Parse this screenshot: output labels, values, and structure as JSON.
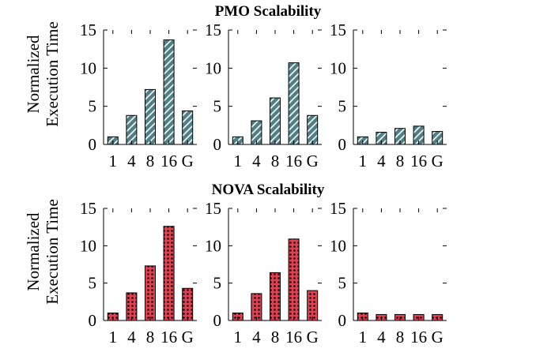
{
  "groups": [
    {
      "title": "PMO Scalability"
    },
    {
      "title": "NOVA Scalability"
    }
  ],
  "ylabel": [
    "Normalized",
    "Execution Time"
  ],
  "colors": {
    "pmo_bar": "#4f7f85",
    "pmo_hatch": "#ffffff",
    "nova_bar": "#e0404f",
    "nova_dots": "#000000",
    "axis": "#000000"
  },
  "chart_data": [
    {
      "type": "bar",
      "group": "PMO Scalability",
      "categories": [
        "1",
        "4",
        "8",
        "16",
        "G"
      ],
      "values": [
        1.0,
        3.8,
        7.2,
        13.7,
        4.4
      ],
      "ylim": [
        0,
        15
      ],
      "yticks": [
        0,
        5,
        10,
        15
      ],
      "xlabel": "",
      "ylabel": "Normalized Execution Time"
    },
    {
      "type": "bar",
      "group": "PMO Scalability",
      "categories": [
        "1",
        "4",
        "8",
        "16",
        "G"
      ],
      "values": [
        1.0,
        3.1,
        6.1,
        10.7,
        3.8
      ],
      "ylim": [
        0,
        15
      ],
      "yticks": [
        0,
        5,
        10,
        15
      ],
      "xlabel": "",
      "ylabel": ""
    },
    {
      "type": "bar",
      "group": "PMO Scalability",
      "categories": [
        "1",
        "4",
        "8",
        "16",
        "G"
      ],
      "values": [
        1.0,
        1.6,
        2.1,
        2.4,
        1.7
      ],
      "ylim": [
        0,
        15
      ],
      "yticks": [
        0,
        5,
        10,
        15
      ],
      "xlabel": "",
      "ylabel": ""
    },
    {
      "type": "bar",
      "group": "NOVA Scalability",
      "categories": [
        "1",
        "4",
        "8",
        "16",
        "G"
      ],
      "values": [
        1.0,
        3.7,
        7.3,
        12.6,
        4.3
      ],
      "ylim": [
        0,
        15
      ],
      "yticks": [
        0,
        5,
        10,
        15
      ],
      "xlabel": "",
      "ylabel": "Normalized Execution Time"
    },
    {
      "type": "bar",
      "group": "NOVA Scalability",
      "categories": [
        "1",
        "4",
        "8",
        "16",
        "G"
      ],
      "values": [
        1.0,
        3.6,
        6.4,
        10.9,
        4.0
      ],
      "ylim": [
        0,
        15
      ],
      "yticks": [
        0,
        5,
        10,
        15
      ],
      "xlabel": "",
      "ylabel": ""
    },
    {
      "type": "bar",
      "group": "NOVA Scalability",
      "categories": [
        "1",
        "4",
        "8",
        "16",
        "G"
      ],
      "values": [
        1.0,
        0.8,
        0.8,
        0.8,
        0.8
      ],
      "ylim": [
        0,
        15
      ],
      "yticks": [
        0,
        5,
        10,
        15
      ],
      "xlabel": "",
      "ylabel": ""
    }
  ]
}
